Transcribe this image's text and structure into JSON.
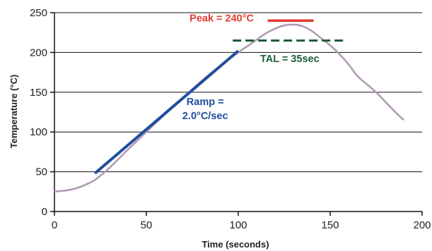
{
  "chart_data": {
    "type": "line",
    "title": "",
    "xlabel": "Time (seconds)",
    "ylabel": "Temperature (°C)",
    "xlim": [
      0,
      200
    ],
    "ylim": [
      0,
      250
    ],
    "xticks": [
      0,
      50,
      100,
      150,
      200
    ],
    "yticks": [
      0,
      50,
      100,
      150,
      200,
      250
    ],
    "grid": "horizontal",
    "series": [
      {
        "color": "#b39ab6",
        "x": [
          0,
          10,
          20,
          25,
          30,
          40,
          50,
          60,
          70,
          80,
          90,
          100,
          105,
          110,
          115,
          120,
          125,
          130,
          135,
          140,
          145,
          150,
          155,
          160,
          165,
          170,
          175,
          180,
          185,
          190
        ],
        "y": [
          25,
          28,
          37,
          45,
          55,
          78,
          100,
          122,
          143,
          164,
          183,
          200,
          208,
          216,
          224,
          230,
          234,
          235,
          233,
          227,
          218,
          209,
          198,
          185,
          170,
          160,
          150,
          138,
          126,
          115
        ]
      },
      {
        "name": "Ramp",
        "color": "#1f4e9b",
        "x": [
          22,
          100
        ],
        "y": [
          48,
          202
        ]
      }
    ],
    "reference_lines": [
      {
        "name": "Peak",
        "color": "#e23b2e",
        "style": "solid",
        "y": 240,
        "x": [
          116,
          141
        ]
      },
      {
        "name": "TAL",
        "color": "#1e5b3a",
        "style": "dashed",
        "y": 215,
        "x": [
          97,
          157
        ]
      }
    ],
    "annotations": [
      {
        "id": "peak",
        "text": "Peak = 240°C",
        "color": "#e23b2e",
        "x": 91,
        "y": 239,
        "anchor": "middle"
      },
      {
        "id": "tal",
        "text": "TAL = 35sec",
        "color": "#1e5b3a",
        "x": 128,
        "y": 188,
        "anchor": "middle"
      },
      {
        "id": "ramp-line1",
        "text": "Ramp =",
        "color": "#1f4e9b",
        "x": 82,
        "y": 134,
        "anchor": "middle"
      },
      {
        "id": "ramp-line2",
        "text": "2.0°C/sec",
        "color": "#1f4e9b",
        "x": 82,
        "y": 116,
        "anchor": "middle"
      }
    ]
  },
  "colors": {
    "grid": "#111111",
    "axis": "#111111",
    "plot_background": "#ffffff"
  }
}
